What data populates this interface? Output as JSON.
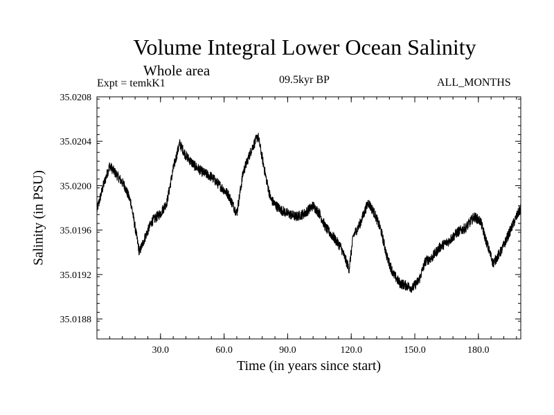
{
  "chart_data": {
    "type": "line",
    "title": "Volume Integral Lower Ocean Salinity",
    "subtitle": "Whole area",
    "experiment_label": "Expt = temkK1",
    "period_label": "09.5kyr BP",
    "months_label": "ALL_MONTHS",
    "xlabel": "Time (in years since start)",
    "ylabel": "Salinity (in PSU)",
    "xlim": [
      0,
      200
    ],
    "ylim": [
      35.01862,
      35.0208
    ],
    "x_ticks": [
      30,
      60,
      90,
      120,
      150,
      180
    ],
    "x_tick_labels": [
      "30.0",
      "60.0",
      "90.0",
      "120.0",
      "150.0",
      "180.0"
    ],
    "y_ticks": [
      35.0188,
      35.0192,
      35.0196,
      35.02,
      35.0204,
      35.0208
    ],
    "y_tick_labels": [
      "35.0188",
      "35.0192",
      "35.0196",
      "35.0200",
      "35.0204",
      "35.0208"
    ],
    "grid": false,
    "line_color": "#000000",
    "series": [
      {
        "name": "Salinity",
        "x": [
          0,
          3,
          6,
          10,
          13,
          16,
          20,
          23,
          26,
          30,
          33,
          36,
          39,
          42,
          46,
          50,
          54,
          58,
          62,
          66,
          69,
          73,
          76,
          78,
          80,
          82,
          84,
          87,
          90,
          94,
          98,
          102,
          105,
          108,
          111,
          115,
          119,
          121,
          124,
          128,
          131,
          134,
          137,
          140,
          143,
          146,
          149,
          152,
          155,
          158,
          162,
          166,
          170,
          174,
          178,
          181,
          184,
          187,
          191,
          194,
          197,
          200
        ],
        "values": [
          35.01978,
          35.02,
          35.02018,
          35.02008,
          35.02,
          35.01985,
          35.0194,
          35.01955,
          35.01968,
          35.01975,
          35.01985,
          35.02015,
          35.02038,
          35.02027,
          35.02018,
          35.02012,
          35.02008,
          35.02,
          35.01992,
          35.01975,
          35.02012,
          35.02033,
          35.02045,
          35.02025,
          35.02005,
          35.01988,
          35.01983,
          35.01978,
          35.01975,
          35.01972,
          35.01975,
          35.01982,
          35.01975,
          35.01962,
          35.01955,
          35.01945,
          35.01925,
          35.01955,
          35.01965,
          35.01985,
          35.01975,
          35.0196,
          35.01935,
          35.0192,
          35.01912,
          35.0191,
          35.01908,
          35.01915,
          35.01932,
          35.01935,
          35.01945,
          35.0195,
          35.01958,
          35.01962,
          35.01972,
          35.01968,
          35.01948,
          35.0193,
          35.01942,
          35.01955,
          35.01968,
          35.0198
        ]
      }
    ]
  }
}
